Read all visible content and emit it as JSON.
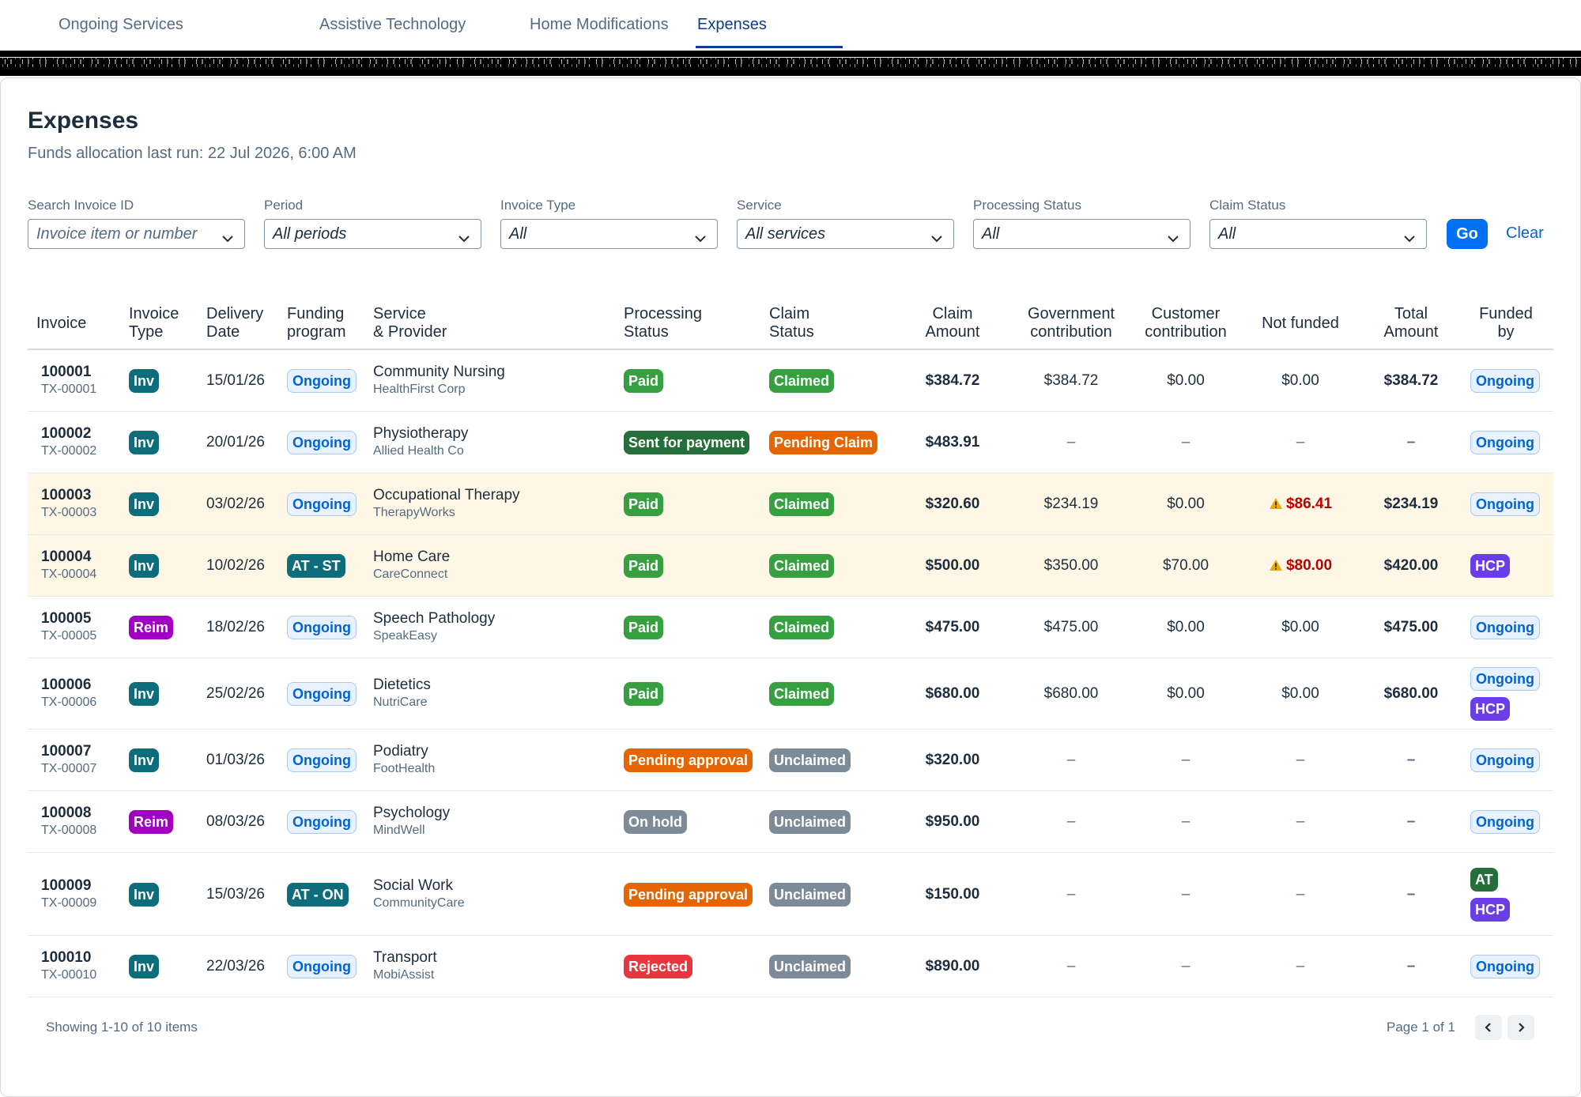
{
  "tabs": [
    {
      "label": "Ongoing Services"
    },
    {
      "label": "Assistive Technology"
    },
    {
      "label": "Home Modifications"
    },
    {
      "label": "Expenses"
    }
  ],
  "page": {
    "title": "Expenses",
    "subtitle": "Funds allocation last run: 22 Jul 2026, 6:00 AM"
  },
  "filters": {
    "search": {
      "label": "Search Invoice ID",
      "placeholder": "Invoice item or number"
    },
    "period": {
      "label": "Period",
      "value": "All periods"
    },
    "invoice_type": {
      "label": "Invoice Type",
      "value": "All"
    },
    "service": {
      "label": "Service",
      "value": "All services"
    },
    "processing_status": {
      "label": "Processing Status",
      "value": "All"
    },
    "claim_status": {
      "label": "Claim Status",
      "value": "All"
    },
    "go_label": "Go",
    "clear_label": "Clear"
  },
  "table": {
    "headers": {
      "invoice": "Invoice",
      "invoice_type_1": "Invoice",
      "invoice_type_2": "Type",
      "delivery_1": "Delivery",
      "delivery_2": "Date",
      "funding_1": "Funding",
      "funding_2": "program",
      "service_1": "Service",
      "service_2": "& Provider",
      "processing_1": "Processing",
      "processing_2": "Status",
      "claim_1": "Claim",
      "claim_2": "Status",
      "claim_amount_1": "Claim",
      "claim_amount_2": "Amount",
      "gov_1": "Government",
      "gov_2": "contribution",
      "cust_1": "Customer",
      "cust_2": "contribution",
      "not_funded": "Not funded",
      "total_1": "Total",
      "total_2": "Amount",
      "funded_1": "Funded",
      "funded_2": "by"
    },
    "rows": [
      {
        "id": "100001",
        "tx": "TX-00001",
        "type": "Inv",
        "date": "15/01/26",
        "program": "Ongoing",
        "service": "Community Nursing",
        "provider": "HealthFirst Corp",
        "processing": "Paid",
        "claim": "Claimed",
        "claim_amount": "$384.72",
        "gov": "$384.72",
        "cust": "$0.00",
        "not_funded": "$0.00",
        "total": "$384.72",
        "funded_by": [
          "Ongoing"
        ]
      },
      {
        "id": "100002",
        "tx": "TX-00002",
        "type": "Inv",
        "date": "20/01/26",
        "program": "Ongoing",
        "service": "Physiotherapy",
        "provider": "Allied Health Co",
        "processing": "Sent for payment",
        "claim": "Pending Claim",
        "claim_amount": "$483.91",
        "gov": "–",
        "cust": "–",
        "not_funded": "–",
        "total": "–",
        "funded_by": [
          "Ongoing"
        ]
      },
      {
        "id": "100003",
        "tx": "TX-00003",
        "type": "Inv",
        "date": "03/02/26",
        "program": "Ongoing",
        "service": "Occupational Therapy",
        "provider": "TherapyWorks",
        "processing": "Paid",
        "claim": "Claimed",
        "claim_amount": "$320.60",
        "gov": "$234.19",
        "cust": "$0.00",
        "not_funded": "$86.41",
        "total": "$234.19",
        "funded_by": [
          "Ongoing"
        ]
      },
      {
        "id": "100004",
        "tx": "TX-00004",
        "type": "Inv",
        "date": "10/02/26",
        "program": "AT - ST",
        "service": "Home Care",
        "provider": "CareConnect",
        "processing": "Paid",
        "claim": "Claimed",
        "claim_amount": "$500.00",
        "gov": "$350.00",
        "cust": "$70.00",
        "not_funded": "$80.00",
        "total": "$420.00",
        "funded_by": [
          "HCP"
        ]
      },
      {
        "id": "100005",
        "tx": "TX-00005",
        "type": "Reim",
        "date": "18/02/26",
        "program": "Ongoing",
        "service": "Speech Pathology",
        "provider": "SpeakEasy",
        "processing": "Paid",
        "claim": "Claimed",
        "claim_amount": "$475.00",
        "gov": "$475.00",
        "cust": "$0.00",
        "not_funded": "$0.00",
        "total": "$475.00",
        "funded_by": [
          "Ongoing"
        ]
      },
      {
        "id": "100006",
        "tx": "TX-00006",
        "type": "Inv",
        "date": "25/02/26",
        "program": "Ongoing",
        "service": "Dietetics",
        "provider": "NutriCare",
        "processing": "Paid",
        "claim": "Claimed",
        "claim_amount": "$680.00",
        "gov": "$680.00",
        "cust": "$0.00",
        "not_funded": "$0.00",
        "total": "$680.00",
        "funded_by": [
          "Ongoing",
          "HCP"
        ]
      },
      {
        "id": "100007",
        "tx": "TX-00007",
        "type": "Inv",
        "date": "01/03/26",
        "program": "Ongoing",
        "service": "Podiatry",
        "provider": "FootHealth",
        "processing": "Pending approval",
        "claim": "Unclaimed",
        "claim_amount": "$320.00",
        "gov": "–",
        "cust": "–",
        "not_funded": "–",
        "total": "–",
        "funded_by": [
          "Ongoing"
        ]
      },
      {
        "id": "100008",
        "tx": "TX-00008",
        "type": "Reim",
        "date": "08/03/26",
        "program": "Ongoing",
        "service": "Psychology",
        "provider": "MindWell",
        "processing": "On hold",
        "claim": "Unclaimed",
        "claim_amount": "$950.00",
        "gov": "–",
        "cust": "–",
        "not_funded": "–",
        "total": "–",
        "funded_by": [
          "Ongoing"
        ]
      },
      {
        "id": "100009",
        "tx": "TX-00009",
        "type": "Inv",
        "date": "15/03/26",
        "program": "AT - ON",
        "service": "Social Work",
        "provider": "CommunityCare",
        "processing": "Pending approval",
        "claim": "Unclaimed",
        "claim_amount": "$150.00",
        "gov": "–",
        "cust": "–",
        "not_funded": "–",
        "total": "–",
        "funded_by": [
          "AT",
          "HCP"
        ]
      },
      {
        "id": "100010",
        "tx": "TX-00010",
        "type": "Inv",
        "date": "22/03/26",
        "program": "Ongoing",
        "service": "Transport",
        "provider": "MobiAssist",
        "processing": "Rejected",
        "claim": "Unclaimed",
        "claim_amount": "$890.00",
        "gov": "–",
        "cust": "–",
        "not_funded": "–",
        "total": "–",
        "funded_by": [
          "Ongoing"
        ]
      }
    ]
  },
  "footer": {
    "showing": "Showing 1-10 of 10 items",
    "page": "Page 1 of 1"
  },
  "colors": {
    "accent": "#0070f2",
    "active_tab": "#0a3d8f",
    "paid": "#36a041",
    "sent_for_payment": "#256f3a",
    "pending": "#e76500",
    "on_hold": "#7d8b98",
    "rejected": "#e9353e",
    "hcp": "#6b3de8",
    "reim": "#a100c2",
    "inv": "#0e6d7a",
    "warning_row": "#fef7e6"
  },
  "icons": {
    "dropdown": "chevron-down-icon",
    "warning": "warning-triangle-icon",
    "prev": "chevron-left-icon",
    "next": "chevron-right-icon"
  }
}
